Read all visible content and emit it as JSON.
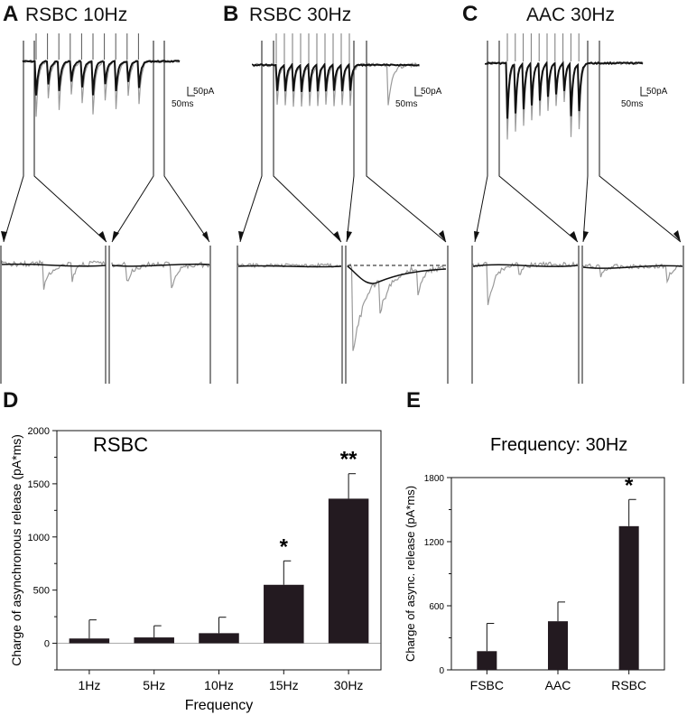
{
  "panels": {
    "A": {
      "letter": "A",
      "title": "RSBC 10Hz"
    },
    "B": {
      "letter": "B",
      "title": "RSBC 30Hz"
    },
    "C": {
      "letter": "C",
      "title": "AAC 30Hz"
    },
    "D": {
      "letter": "D"
    },
    "E": {
      "letter": "E"
    }
  },
  "scale_bars": {
    "amplitude": "50pA",
    "time": "50ms"
  },
  "colors": {
    "bar_fill": "#231a20",
    "trace_gray": "#9a9a9a",
    "trace_black": "#111111"
  },
  "chart_data": [
    {
      "type": "bar",
      "title": "RSBC",
      "xlabel": "Frequency",
      "ylabel": "Charge of asynchronous release (pA*ms)",
      "categories": [
        "1Hz",
        "5Hz",
        "10Hz",
        "15Hz",
        "30Hz"
      ],
      "values": [
        45,
        55,
        95,
        550,
        1360
      ],
      "errors": [
        175,
        110,
        150,
        225,
        235
      ],
      "significance": [
        "",
        "",
        "",
        "*",
        "**"
      ],
      "ylim": [
        -250,
        2000
      ],
      "yticks": [
        0,
        500,
        1000,
        1500,
        2000
      ],
      "ytick_labels": [
        "0",
        "500",
        "1000",
        "1500",
        "2000"
      ]
    },
    {
      "type": "bar",
      "title": "Frequency: 30Hz",
      "xlabel": "",
      "ylabel": "Charge of async. release (pA*ms)",
      "categories": [
        "FSBC",
        "AAC",
        "RSBC"
      ],
      "values": [
        175,
        455,
        1345
      ],
      "errors": [
        260,
        180,
        250
      ],
      "significance": [
        "",
        "",
        "*"
      ],
      "ylim": [
        0,
        1800
      ],
      "yticks": [
        0,
        600,
        1200,
        1800
      ],
      "ytick_labels": [
        "0",
        "600",
        "1200",
        "1800"
      ]
    }
  ]
}
